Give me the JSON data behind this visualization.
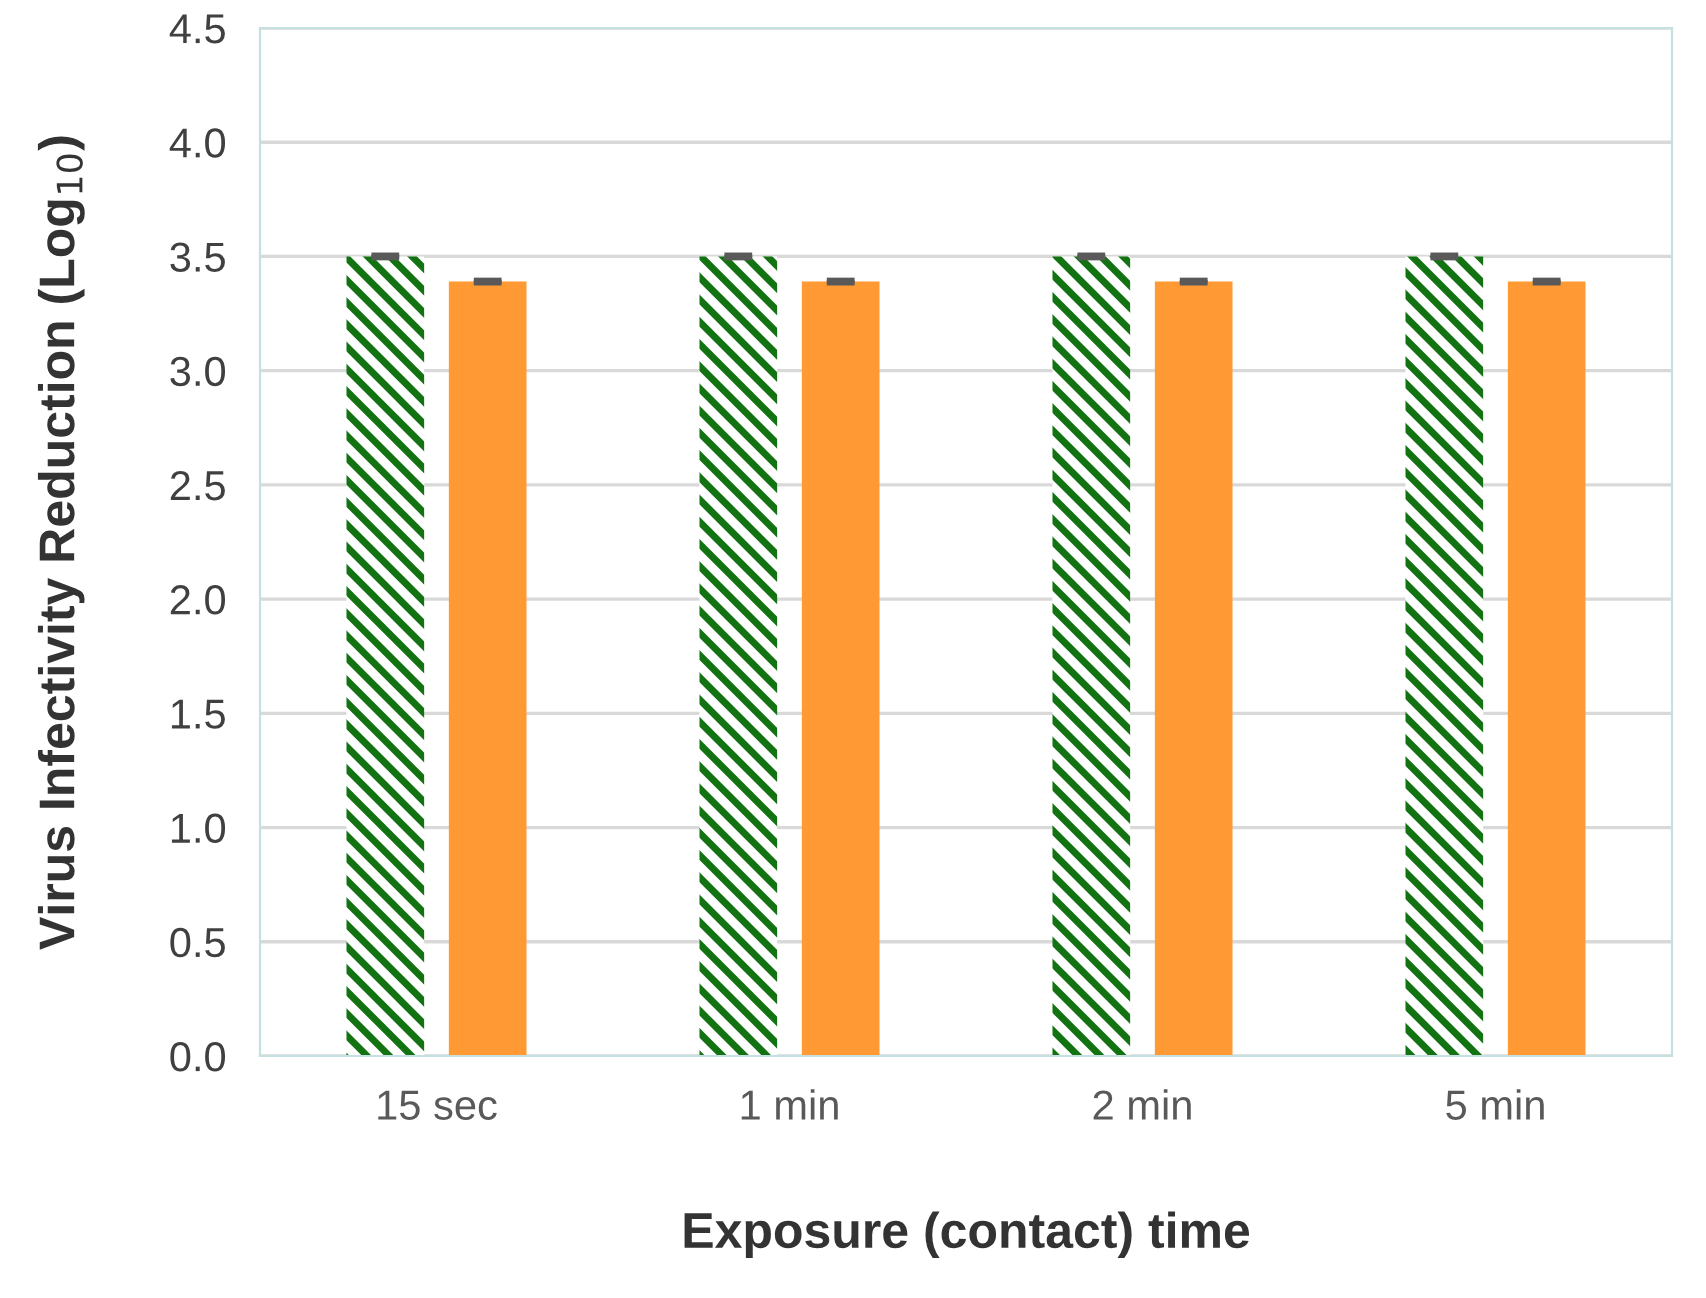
{
  "chart_data": {
    "type": "bar",
    "xlabel": "Exposure (contact) time",
    "ylabel": "Virus Infectivity Reduction (Log$_{10}$)",
    "categories": [
      "15 sec",
      "1 min",
      "2 min",
      "5 min"
    ],
    "series": [
      {
        "color": "#137313",
        "values": [
          3.5,
          3.5,
          3.5,
          3.5
        ],
        "errors": [
          0.005,
          0.005,
          0.005,
          0.005
        ]
      },
      {
        "color": "#ff9933",
        "values": [
          3.39,
          3.39,
          3.39,
          3.39
        ],
        "errors": [
          0.005,
          0.005,
          0.005,
          0.005
        ]
      }
    ],
    "ylim": [
      0,
      4.5
    ],
    "yticks": [
      {
        "value": 0,
        "label": "0.0"
      },
      {
        "value": 0.5,
        "label": "0.5"
      },
      {
        "value": 1,
        "label": "1.0"
      },
      {
        "value": 1.5,
        "label": "1.5"
      },
      {
        "value": 2,
        "label": "2.0"
      },
      {
        "value": 2.5,
        "label": "2.5"
      },
      {
        "value": 3,
        "label": "3.0"
      },
      {
        "value": 3.5,
        "label": "3.5"
      },
      {
        "value": 4,
        "label": "4.0"
      },
      {
        "value": 4.5,
        "label": "4.5"
      }
    ],
    "grid": "y",
    "legend": false
  }
}
